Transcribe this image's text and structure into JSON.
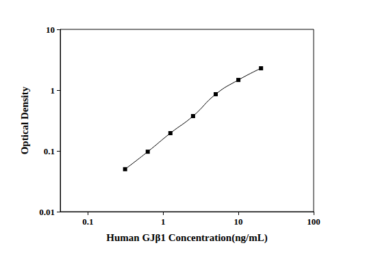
{
  "chart_data": {
    "type": "line",
    "x_label": "Human GJβ1 Concentration(ng/mL)",
    "y_label": "Optical Density",
    "x": [
      0.3125,
      0.625,
      1.25,
      2.5,
      5,
      10,
      20
    ],
    "values": [
      0.05,
      0.097,
      0.196,
      0.374,
      0.857,
      1.47,
      2.29
    ],
    "color": "#000000",
    "marker": "square",
    "line_style": "solid",
    "log": true,
    "grid": false,
    "xlim": [
      0.043,
      100
    ],
    "xticks": [
      0.1,
      1,
      10,
      100
    ],
    "ylim": [
      0.01,
      10
    ],
    "yticks": [
      0.01,
      0.1,
      1,
      10
    ]
  }
}
